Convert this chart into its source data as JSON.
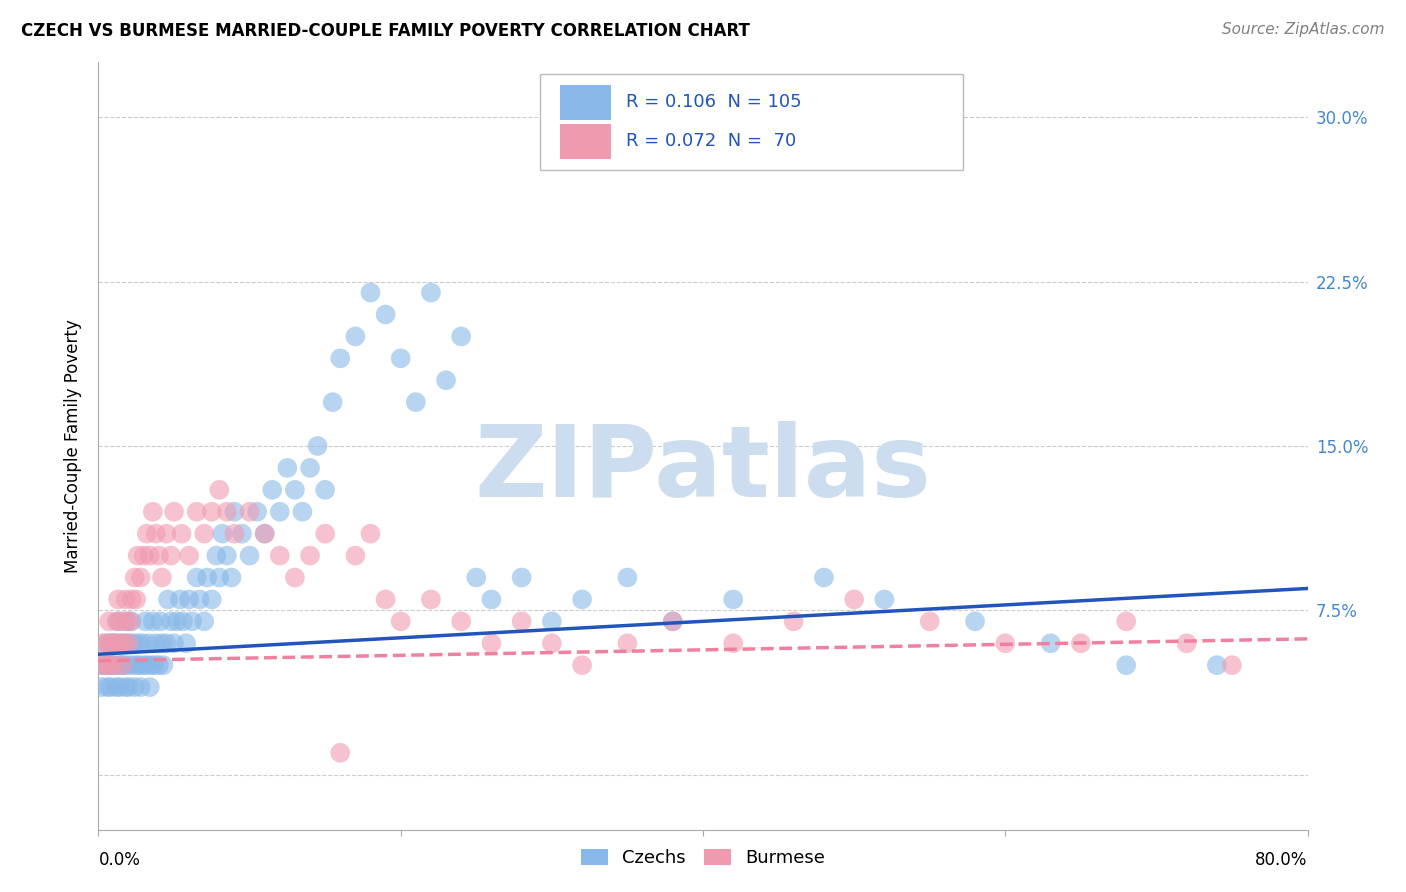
{
  "title": "CZECH VS BURMESE MARRIED-COUPLE FAMILY POVERTY CORRELATION CHART",
  "source": "Source: ZipAtlas.com",
  "ylabel": "Married-Couple Family Poverty",
  "xlim": [
    0.0,
    0.8
  ],
  "ylim": [
    -0.025,
    0.325
  ],
  "xticks": [
    0.0,
    0.2,
    0.4,
    0.6,
    0.8
  ],
  "xticklabels_left": "0.0%",
  "xticklabels_right": "80.0%",
  "ytick_vals": [
    0.0,
    0.075,
    0.15,
    0.225,
    0.3
  ],
  "ytick_labels": [
    "",
    "7.5%",
    "15.0%",
    "22.5%",
    "30.0%"
  ],
  "czechs_color": "#88b8e8",
  "burmese_color": "#f09ab0",
  "czechs_line_color": "#2255bb",
  "burmese_line_color": "#f080a0",
  "watermark_text": "ZIPatlas",
  "watermark_color": "#ccddf0",
  "grid_color": "#cccccc",
  "title_fontsize": 12,
  "source_fontsize": 11,
  "tick_fontsize": 12,
  "legend_R_czech": "0.106",
  "legend_N_czech": "105",
  "legend_R_burmese": "0.072",
  "legend_N_burmese": "70",
  "legend_color_text": "#2255bb",
  "czechs_x": [
    0.002,
    0.003,
    0.004,
    0.005,
    0.006,
    0.007,
    0.008,
    0.008,
    0.009,
    0.009,
    0.01,
    0.01,
    0.012,
    0.012,
    0.013,
    0.013,
    0.014,
    0.015,
    0.015,
    0.016,
    0.017,
    0.018,
    0.018,
    0.019,
    0.02,
    0.02,
    0.022,
    0.022,
    0.023,
    0.024,
    0.025,
    0.026,
    0.027,
    0.028,
    0.029,
    0.03,
    0.031,
    0.032,
    0.033,
    0.034,
    0.035,
    0.036,
    0.037,
    0.038,
    0.04,
    0.041,
    0.042,
    0.043,
    0.045,
    0.046,
    0.048,
    0.05,
    0.052,
    0.054,
    0.056,
    0.058,
    0.06,
    0.062,
    0.065,
    0.067,
    0.07,
    0.072,
    0.075,
    0.078,
    0.08,
    0.082,
    0.085,
    0.088,
    0.09,
    0.095,
    0.1,
    0.105,
    0.11,
    0.115,
    0.12,
    0.125,
    0.13,
    0.135,
    0.14,
    0.145,
    0.15,
    0.155,
    0.16,
    0.17,
    0.18,
    0.19,
    0.2,
    0.21,
    0.22,
    0.23,
    0.24,
    0.25,
    0.26,
    0.28,
    0.3,
    0.32,
    0.35,
    0.38,
    0.42,
    0.48,
    0.52,
    0.58,
    0.63,
    0.68,
    0.74
  ],
  "czechs_y": [
    0.04,
    0.05,
    0.05,
    0.06,
    0.04,
    0.05,
    0.06,
    0.04,
    0.05,
    0.06,
    0.05,
    0.06,
    0.04,
    0.06,
    0.05,
    0.07,
    0.04,
    0.05,
    0.06,
    0.05,
    0.06,
    0.04,
    0.07,
    0.05,
    0.04,
    0.06,
    0.05,
    0.07,
    0.06,
    0.04,
    0.05,
    0.06,
    0.05,
    0.04,
    0.06,
    0.05,
    0.07,
    0.05,
    0.06,
    0.04,
    0.05,
    0.07,
    0.05,
    0.06,
    0.05,
    0.07,
    0.06,
    0.05,
    0.06,
    0.08,
    0.07,
    0.06,
    0.07,
    0.08,
    0.07,
    0.06,
    0.08,
    0.07,
    0.09,
    0.08,
    0.07,
    0.09,
    0.08,
    0.1,
    0.09,
    0.11,
    0.1,
    0.09,
    0.12,
    0.11,
    0.1,
    0.12,
    0.11,
    0.13,
    0.12,
    0.14,
    0.13,
    0.12,
    0.14,
    0.15,
    0.13,
    0.17,
    0.19,
    0.2,
    0.22,
    0.21,
    0.19,
    0.17,
    0.22,
    0.18,
    0.2,
    0.09,
    0.08,
    0.09,
    0.07,
    0.08,
    0.09,
    0.07,
    0.08,
    0.09,
    0.08,
    0.07,
    0.06,
    0.05,
    0.05
  ],
  "burmese_x": [
    0.001,
    0.003,
    0.005,
    0.006,
    0.007,
    0.008,
    0.009,
    0.01,
    0.011,
    0.012,
    0.013,
    0.014,
    0.015,
    0.016,
    0.017,
    0.018,
    0.019,
    0.02,
    0.021,
    0.022,
    0.024,
    0.025,
    0.026,
    0.028,
    0.03,
    0.032,
    0.034,
    0.036,
    0.038,
    0.04,
    0.042,
    0.045,
    0.048,
    0.05,
    0.055,
    0.06,
    0.065,
    0.07,
    0.075,
    0.08,
    0.085,
    0.09,
    0.1,
    0.11,
    0.12,
    0.13,
    0.14,
    0.15,
    0.16,
    0.17,
    0.18,
    0.19,
    0.2,
    0.22,
    0.24,
    0.26,
    0.28,
    0.3,
    0.32,
    0.35,
    0.38,
    0.42,
    0.46,
    0.5,
    0.55,
    0.6,
    0.65,
    0.68,
    0.72,
    0.75
  ],
  "burmese_y": [
    0.05,
    0.06,
    0.05,
    0.06,
    0.07,
    0.05,
    0.06,
    0.05,
    0.06,
    0.07,
    0.08,
    0.06,
    0.07,
    0.05,
    0.06,
    0.08,
    0.07,
    0.06,
    0.07,
    0.08,
    0.09,
    0.08,
    0.1,
    0.09,
    0.1,
    0.11,
    0.1,
    0.12,
    0.11,
    0.1,
    0.09,
    0.11,
    0.1,
    0.12,
    0.11,
    0.1,
    0.12,
    0.11,
    0.12,
    0.13,
    0.12,
    0.11,
    0.12,
    0.11,
    0.1,
    0.09,
    0.1,
    0.11,
    0.01,
    0.1,
    0.11,
    0.08,
    0.07,
    0.08,
    0.07,
    0.06,
    0.07,
    0.06,
    0.05,
    0.06,
    0.07,
    0.06,
    0.07,
    0.08,
    0.07,
    0.06,
    0.06,
    0.07,
    0.06,
    0.05
  ]
}
